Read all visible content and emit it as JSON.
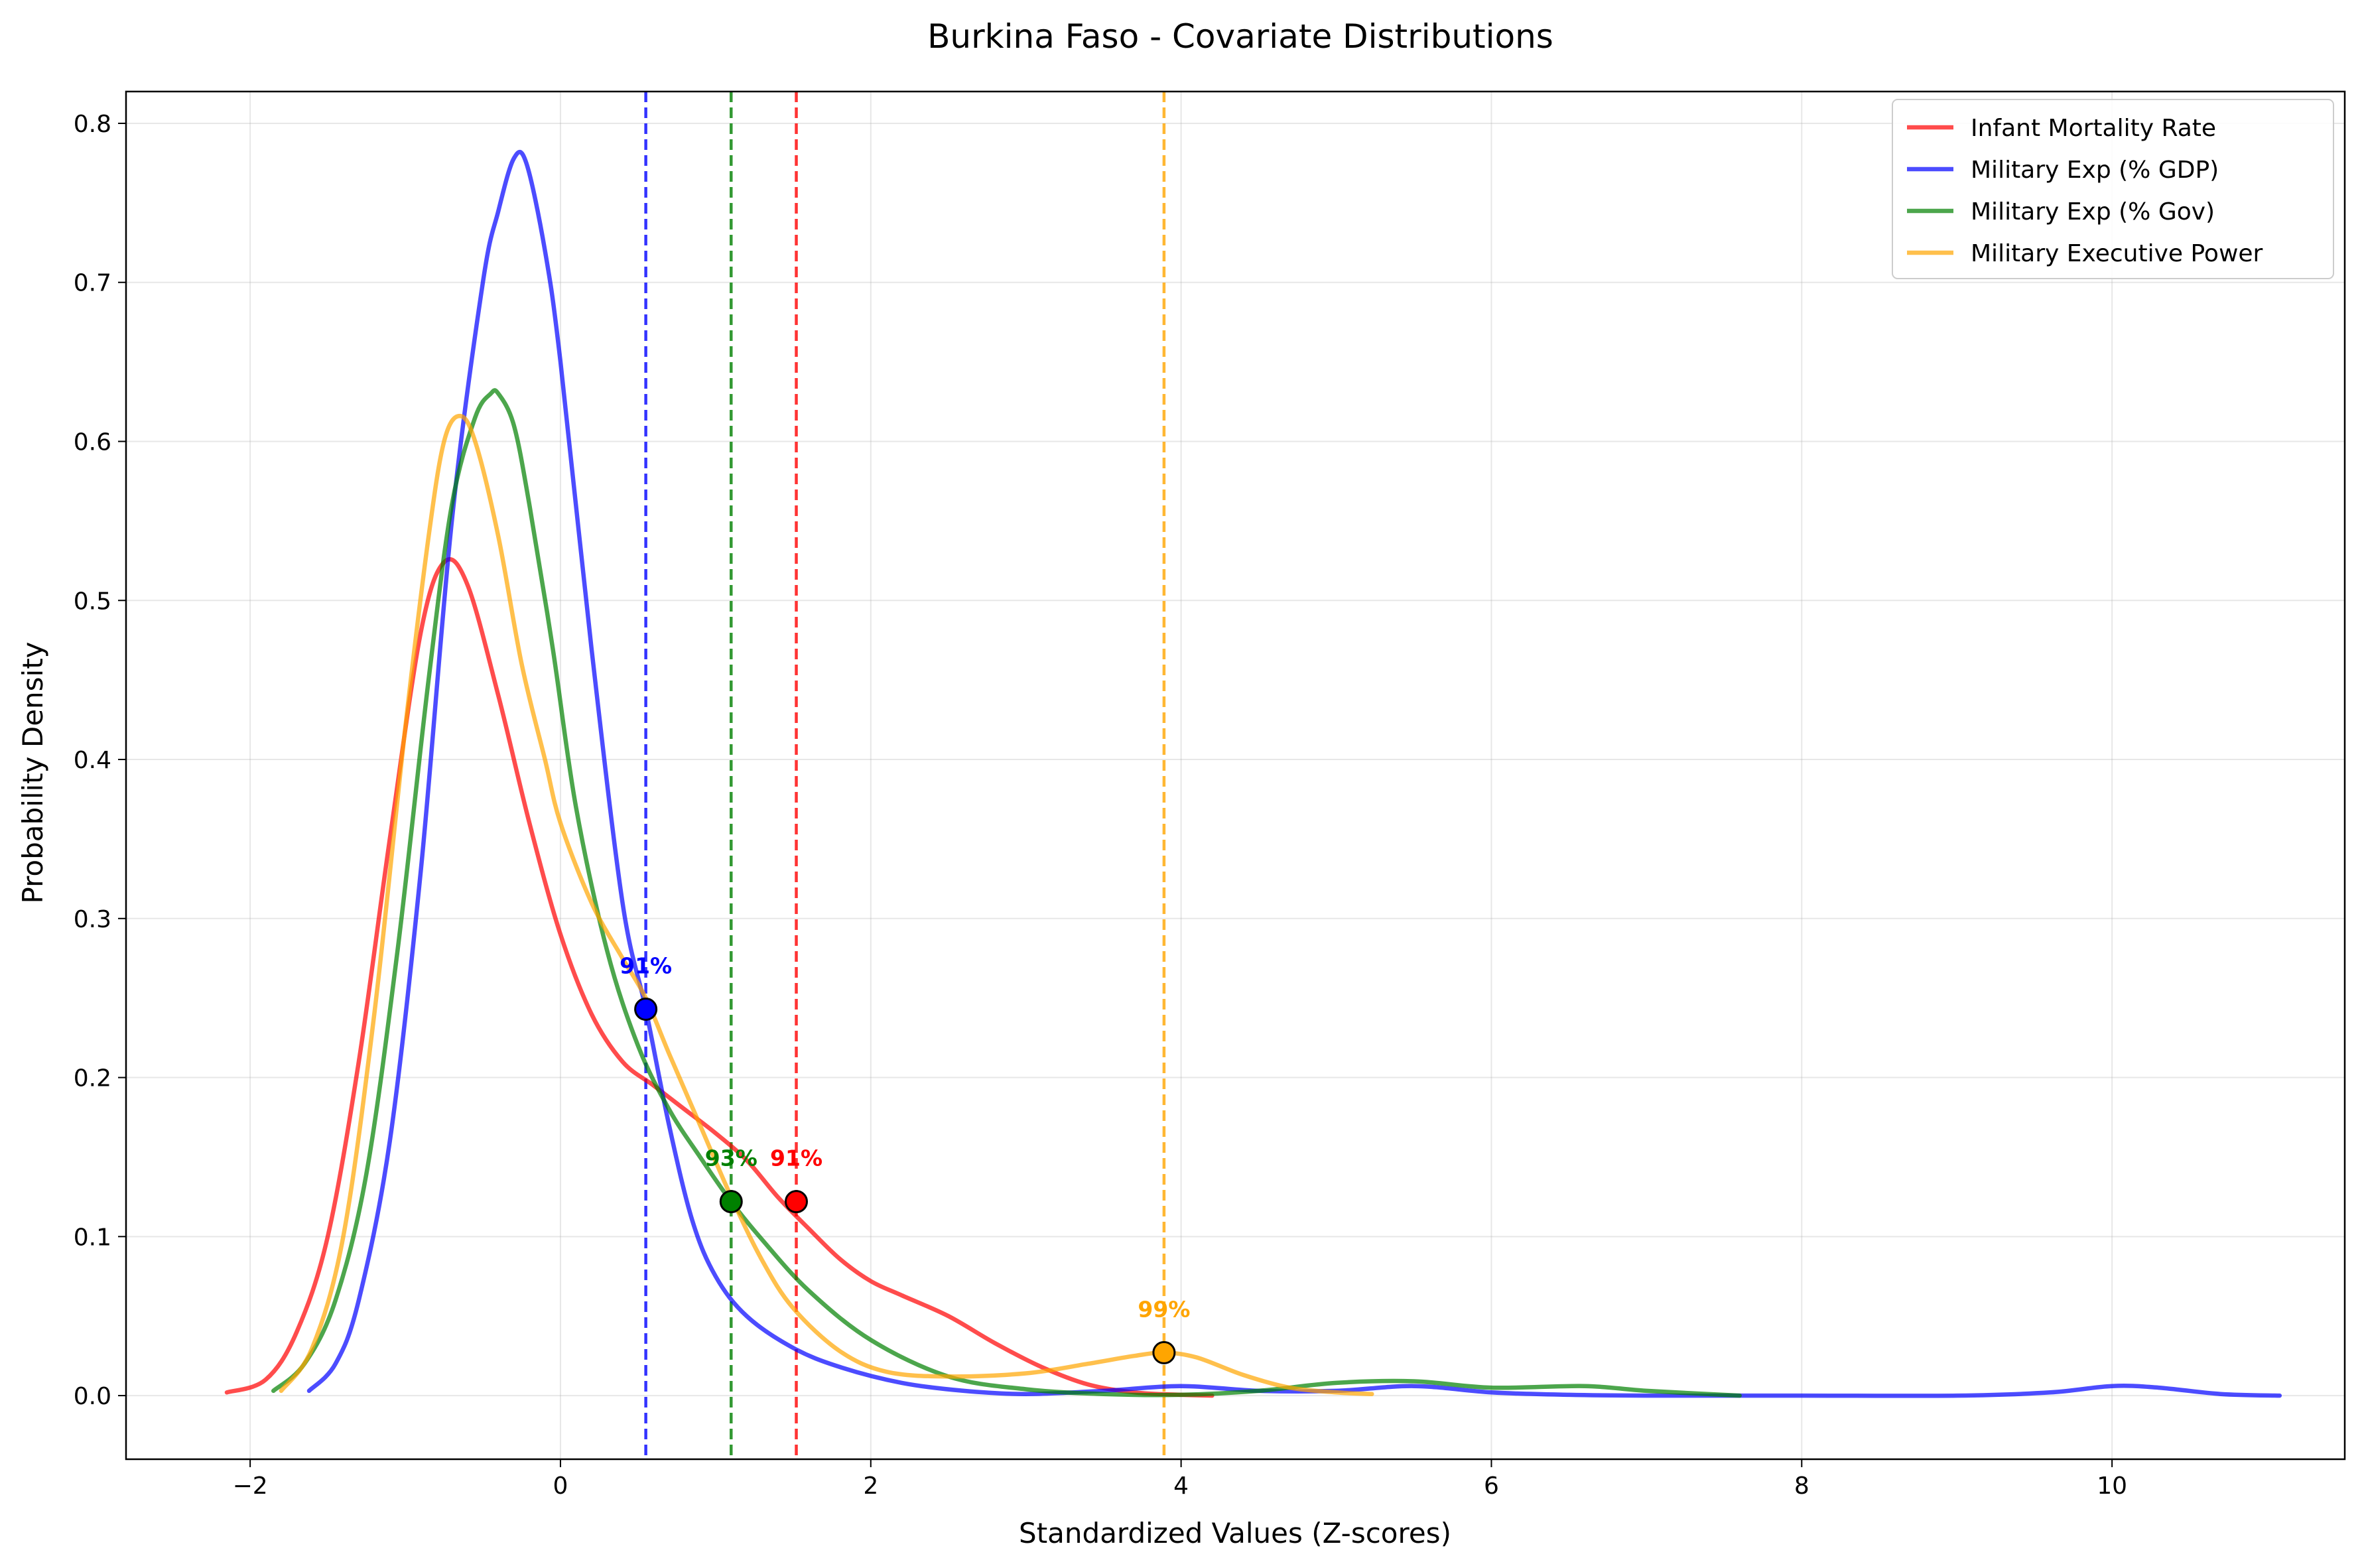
{
  "chart_data": {
    "type": "line",
    "title": "Burkina Faso - Covariate Distributions",
    "xlabel": "Standardized Values (Z-scores)",
    "ylabel": "Probability Density",
    "xlim": [
      -2.8,
      11.5
    ],
    "ylim": [
      -0.04,
      0.82
    ],
    "xticks": [
      -2,
      0,
      2,
      4,
      6,
      8,
      10
    ],
    "yticks": [
      0.0,
      0.1,
      0.2,
      0.3,
      0.4,
      0.5,
      0.6,
      0.7,
      0.8
    ],
    "xtick_labels": [
      "−2",
      "0",
      "2",
      "4",
      "6",
      "8",
      "10"
    ],
    "ytick_labels": [
      "0.0",
      "0.1",
      "0.2",
      "0.3",
      "0.4",
      "0.5",
      "0.6",
      "0.7",
      "0.8"
    ],
    "grid": true,
    "legend_position": "top-right",
    "series": [
      {
        "name": "Infant Mortality Rate",
        "color": "#ff0000",
        "x": [
          -2.15,
          -1.9,
          -1.7,
          -1.5,
          -1.3,
          -1.1,
          -0.9,
          -0.75,
          -0.6,
          -0.4,
          -0.2,
          0.0,
          0.2,
          0.4,
          0.6,
          0.8,
          1.0,
          1.2,
          1.4,
          1.6,
          1.8,
          2.0,
          2.2,
          2.5,
          2.8,
          3.1,
          3.4,
          3.7,
          4.0,
          4.2
        ],
        "y": [
          0.002,
          0.01,
          0.04,
          0.1,
          0.21,
          0.35,
          0.48,
          0.524,
          0.51,
          0.44,
          0.36,
          0.29,
          0.24,
          0.21,
          0.195,
          0.18,
          0.165,
          0.148,
          0.125,
          0.105,
          0.086,
          0.072,
          0.063,
          0.05,
          0.033,
          0.018,
          0.007,
          0.002,
          0.0005,
          0.0
        ],
        "marker": {
          "x": 1.52,
          "y": 0.122,
          "label": "91%"
        },
        "threshold": 1.52
      },
      {
        "name": "Military Exp (% GDP)",
        "color": "#0000ff",
        "x": [
          -1.62,
          -1.45,
          -1.3,
          -1.1,
          -0.9,
          -0.7,
          -0.5,
          -0.4,
          -0.3,
          -0.22,
          -0.1,
          0.0,
          0.2,
          0.4,
          0.55,
          0.7,
          0.85,
          1.0,
          1.2,
          1.5,
          1.8,
          2.2,
          2.6,
          3.0,
          3.5,
          4.0,
          4.5,
          5.0,
          5.5,
          6.0,
          6.5,
          7.0,
          8.0,
          9.0,
          9.6,
          10.0,
          10.3,
          10.7,
          11.08
        ],
        "y": [
          0.003,
          0.02,
          0.06,
          0.16,
          0.33,
          0.55,
          0.7,
          0.745,
          0.778,
          0.775,
          0.72,
          0.65,
          0.47,
          0.31,
          0.243,
          0.17,
          0.11,
          0.075,
          0.05,
          0.03,
          0.018,
          0.008,
          0.003,
          0.001,
          0.003,
          0.006,
          0.003,
          0.003,
          0.006,
          0.002,
          0.0005,
          0.0,
          0.0,
          0.0,
          0.002,
          0.006,
          0.005,
          0.001,
          0.0
        ],
        "marker": {
          "x": 0.55,
          "y": 0.243,
          "label": "91%"
        },
        "threshold": 0.55
      },
      {
        "name": "Military Exp (% Gov)",
        "color": "#008000",
        "x": [
          -1.85,
          -1.65,
          -1.45,
          -1.25,
          -1.05,
          -0.85,
          -0.7,
          -0.55,
          -0.45,
          -0.4,
          -0.3,
          -0.2,
          -0.05,
          0.1,
          0.3,
          0.5,
          0.7,
          0.9,
          1.1,
          1.3,
          1.6,
          2.0,
          2.5,
          3.0,
          3.5,
          4.0,
          4.5,
          5.0,
          5.5,
          6.0,
          6.6,
          7.0,
          7.6
        ],
        "y": [
          0.003,
          0.02,
          0.06,
          0.14,
          0.28,
          0.45,
          0.56,
          0.615,
          0.63,
          0.63,
          0.61,
          0.56,
          0.47,
          0.37,
          0.28,
          0.22,
          0.18,
          0.15,
          0.122,
          0.098,
          0.066,
          0.035,
          0.012,
          0.004,
          0.001,
          0.0005,
          0.003,
          0.008,
          0.009,
          0.005,
          0.006,
          0.003,
          0.0
        ],
        "marker": {
          "x": 1.1,
          "y": 0.122,
          "label": "93%"
        },
        "threshold": 1.1
      },
      {
        "name": "Military Executive Power",
        "color": "#ffa500",
        "x": [
          -1.8,
          -1.6,
          -1.4,
          -1.2,
          -1.0,
          -0.85,
          -0.75,
          -0.65,
          -0.55,
          -0.4,
          -0.25,
          -0.1,
          0.0,
          0.2,
          0.4,
          0.55,
          0.7,
          0.9,
          1.1,
          1.3,
          1.5,
          1.8,
          2.1,
          2.5,
          3.0,
          3.4,
          3.7,
          3.89,
          4.1,
          4.4,
          4.7,
          5.0,
          5.23
        ],
        "y": [
          0.003,
          0.03,
          0.1,
          0.24,
          0.42,
          0.54,
          0.6,
          0.616,
          0.6,
          0.54,
          0.46,
          0.4,
          0.36,
          0.31,
          0.275,
          0.25,
          0.215,
          0.17,
          0.125,
          0.085,
          0.055,
          0.028,
          0.015,
          0.012,
          0.014,
          0.02,
          0.025,
          0.027,
          0.024,
          0.013,
          0.005,
          0.002,
          0.001
        ],
        "marker": {
          "x": 3.89,
          "y": 0.027,
          "label": "99%"
        },
        "threshold": 3.89
      }
    ]
  }
}
